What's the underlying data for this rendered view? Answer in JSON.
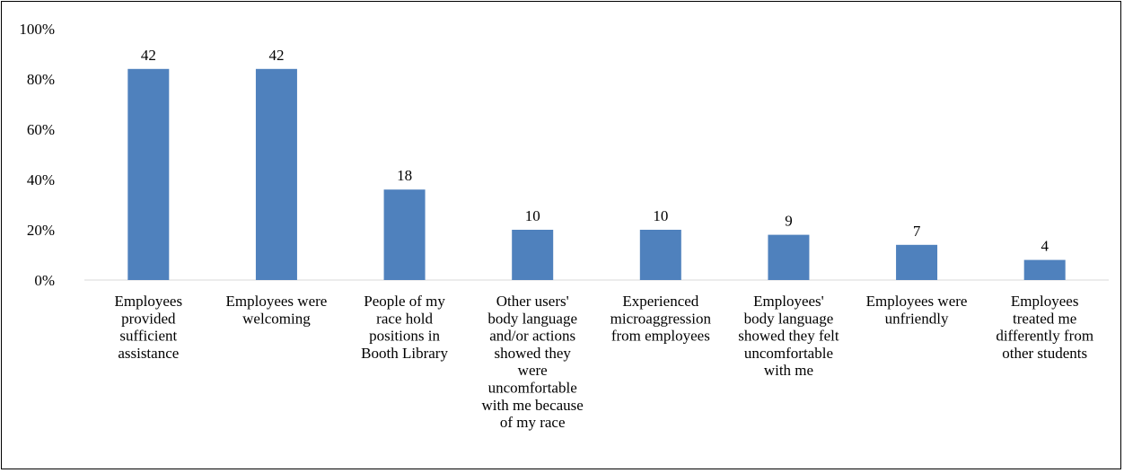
{
  "chart_data": {
    "type": "bar",
    "title": "",
    "xlabel": "",
    "ylabel": "",
    "ylim": [
      0,
      100
    ],
    "y_tick_values": [
      0,
      20,
      40,
      60,
      80,
      100
    ],
    "y_tick_labels": [
      "0%",
      "20%",
      "40%",
      "60%",
      "80%",
      "100%"
    ],
    "grid": false,
    "legend": "none",
    "bar_color": "#4f81bd",
    "categories": [
      "Employees provided sufficient assistance",
      "Employees were welcoming",
      "People of my race hold positions in Booth Library",
      "Other users' body language and/or actions showed they were uncomfortable with me because of my race",
      "Experienced microaggression from employees",
      "Employees' body language showed they felt uncomfortable with me",
      "Employees were unfriendly",
      "Employees treated me differently from other students"
    ],
    "category_label_lines": [
      [
        "Employees",
        "provided",
        "sufficient",
        "assistance"
      ],
      [
        "Employees were",
        "welcoming"
      ],
      [
        "People of my",
        "race hold",
        "positions in",
        "Booth Library"
      ],
      [
        "Other users'",
        "body language",
        "and/or actions",
        "showed they",
        "were",
        "uncomfortable",
        "with me because",
        "of my race"
      ],
      [
        "Experienced",
        "microaggression",
        "from employees"
      ],
      [
        "Employees'",
        "body language",
        "showed they felt",
        "uncomfortable",
        "with me"
      ],
      [
        "Employees were",
        "unfriendly"
      ],
      [
        "Employees",
        "treated me",
        "differently from",
        "other students"
      ]
    ],
    "values": [
      84,
      84,
      36,
      20,
      20,
      18,
      14,
      8
    ],
    "data_labels": [
      "42",
      "42",
      "18",
      "10",
      "10",
      "9",
      "7",
      "4"
    ]
  }
}
